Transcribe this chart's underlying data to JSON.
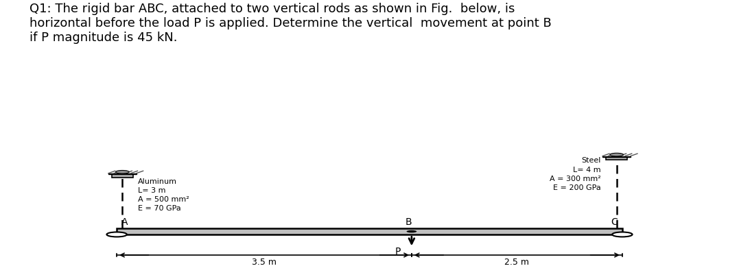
{
  "title_text": "Q1: The rigid bar ABC, attached to two vertical rods as shown in Fig.  below, is\nhorizontal before the load P is applied. Determine the vertical  movement at point B\nif P magnitude is 45 kN.",
  "title_fontsize": 13.0,
  "bg_color": "#ffffff",
  "bar_color": "#c0c0c0",
  "bar_edge_color": "#000000",
  "rod_color": "#000000",
  "al_label": "Aluminum\nL= 3 m\nA = 500 mm²\nE = 70 GPa",
  "st_label": "Steel\nL= 4 m\nA = 300 mm²\nE = 200 GPa",
  "label_A": "A",
  "label_B": "B",
  "label_C": "C",
  "label_P": "P",
  "dim_35": "3.5 m",
  "dim_25": "2.5 m",
  "fig_width": 10.77,
  "fig_height": 4.04
}
